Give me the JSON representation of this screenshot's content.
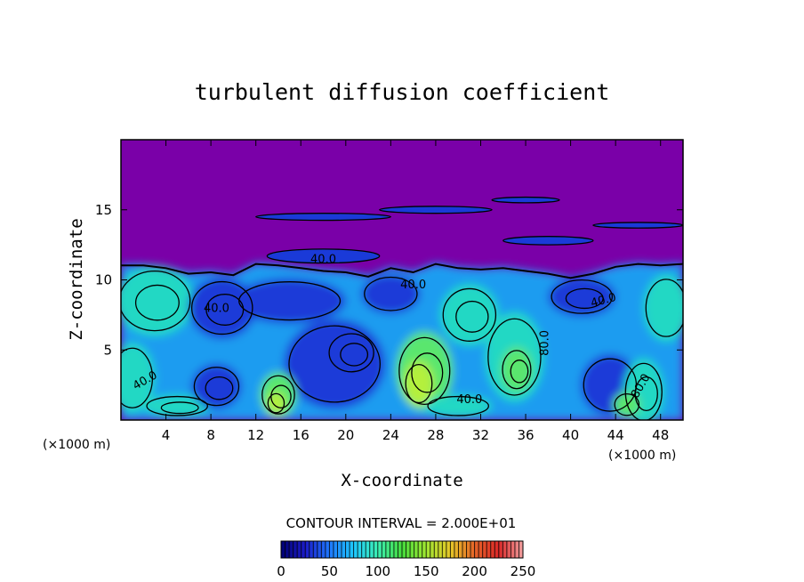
{
  "chart_data": {
    "type": "heatmap",
    "title": "turbulent diffusion coefficient",
    "xlabel": "X-coordinate",
    "ylabel": "Z-coordinate",
    "x_unit_left": "(×1000 m)",
    "x_unit_right": "(×1000 m)",
    "xlim": [
      0,
      50
    ],
    "ylim": [
      0,
      20
    ],
    "x_ticks": [
      4,
      8,
      12,
      16,
      20,
      24,
      28,
      32,
      36,
      40,
      44,
      48
    ],
    "y_ticks": [
      5,
      10,
      15
    ],
    "contour_interval_label": "CONTOUR INTERVAL = 2.000E+01",
    "contour_labels": [
      "40.0",
      "40.0",
      "40.0",
      "40.0",
      "40.0",
      "80.0",
      "80.0",
      "40.0"
    ],
    "colorbar": {
      "range": [
        0,
        250
      ],
      "ticks": [
        0,
        50,
        100,
        150,
        200,
        250
      ],
      "colors": [
        "#000070",
        "#1c1cc8",
        "#1e78ff",
        "#1ec8ff",
        "#3cf0b4",
        "#46dc3c",
        "#a0e632",
        "#e6c828",
        "#e66428",
        "#dc2828",
        "#f0a0a0"
      ]
    },
    "field_colors": {
      "upper": "#7a00a8",
      "low": "#1a3ad8",
      "mid": "#1e9cf0",
      "high": "#22d8c4",
      "peak": "#5ae66e",
      "max": "#b4f03c"
    }
  }
}
